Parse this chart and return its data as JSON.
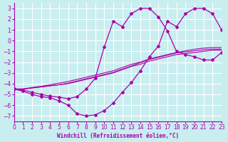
{
  "xlabel": "Windchill (Refroidissement éolien,°C)",
  "background_color": "#c8eef0",
  "grid_color": "#ffffff",
  "line_color": "#aa00aa",
  "xlim": [
    0,
    23
  ],
  "ylim": [
    -7.5,
    3.5
  ],
  "yticks": [
    3,
    2,
    1,
    0,
    -1,
    -2,
    -3,
    -4,
    -5,
    -6,
    -7
  ],
  "xticks": [
    0,
    1,
    2,
    3,
    4,
    5,
    6,
    7,
    8,
    9,
    10,
    11,
    12,
    13,
    14,
    15,
    16,
    17,
    18,
    19,
    20,
    21,
    22,
    23
  ],
  "main_curve_x": [
    0,
    1,
    2,
    3,
    4,
    5,
    6,
    7,
    8,
    9,
    10,
    11,
    12,
    13,
    14,
    15,
    16,
    17,
    18,
    19,
    20,
    21,
    22,
    23
  ],
  "main_curve_y": [
    -4.5,
    -4.7,
    -5.0,
    -5.2,
    -5.3,
    -5.6,
    -6.0,
    -6.8,
    -7.0,
    -6.9,
    -6.5,
    -5.8,
    -4.8,
    -3.9,
    -2.8,
    -1.5,
    -0.5,
    1.8,
    1.3,
    2.5,
    3.0,
    3.0,
    2.5,
    1.0
  ],
  "line1_x": [
    0,
    1,
    2,
    3,
    4,
    5,
    6,
    7,
    8,
    9,
    10,
    11,
    12,
    13,
    14,
    15,
    16,
    17,
    18,
    19,
    20,
    21,
    22,
    23
  ],
  "line1_y": [
    -4.5,
    -4.5,
    -4.4,
    -4.3,
    -4.2,
    -4.1,
    -4.0,
    -3.8,
    -3.6,
    -3.4,
    -3.2,
    -3.0,
    -2.7,
    -2.4,
    -2.2,
    -1.9,
    -1.7,
    -1.5,
    -1.3,
    -1.2,
    -1.1,
    -1.0,
    -0.9,
    -0.9
  ],
  "line2_x": [
    0,
    1,
    2,
    3,
    4,
    5,
    6,
    7,
    8,
    9,
    10,
    11,
    12,
    13,
    14,
    15,
    16,
    17,
    18,
    19,
    20,
    21,
    22,
    23
  ],
  "line2_y": [
    -4.5,
    -4.5,
    -4.4,
    -4.3,
    -4.2,
    -4.1,
    -3.95,
    -3.75,
    -3.55,
    -3.35,
    -3.15,
    -2.95,
    -2.65,
    -2.35,
    -2.05,
    -1.75,
    -1.55,
    -1.35,
    -1.15,
    -1.05,
    -0.95,
    -0.85,
    -0.8,
    -0.8
  ],
  "line3_x": [
    0,
    1,
    2,
    3,
    4,
    5,
    6,
    7,
    8,
    9,
    10,
    11,
    12,
    13,
    14,
    15,
    16,
    17,
    18,
    19,
    20,
    21,
    22,
    23
  ],
  "line3_y": [
    -4.5,
    -4.5,
    -4.35,
    -4.25,
    -4.1,
    -3.95,
    -3.8,
    -3.6,
    -3.4,
    -3.2,
    -3.0,
    -2.8,
    -2.5,
    -2.2,
    -2.0,
    -1.7,
    -1.5,
    -1.3,
    -1.1,
    -0.95,
    -0.8,
    -0.7,
    -0.65,
    -0.65
  ],
  "upper_curve_x": [
    0,
    1,
    2,
    3,
    4,
    5,
    6,
    7,
    8,
    9,
    10,
    11,
    12,
    13,
    14,
    15,
    16,
    17,
    18,
    19,
    20,
    21,
    22,
    23
  ],
  "upper_curve_y": [
    -4.5,
    -4.6,
    -4.8,
    -5.0,
    -5.15,
    -5.25,
    -5.4,
    -5.2,
    -4.5,
    -3.5,
    -0.6,
    1.8,
    1.3,
    2.5,
    3.0,
    3.0,
    2.2,
    0.9,
    -1.0,
    -1.3,
    -1.5,
    -1.8,
    -1.8,
    -1.1
  ]
}
